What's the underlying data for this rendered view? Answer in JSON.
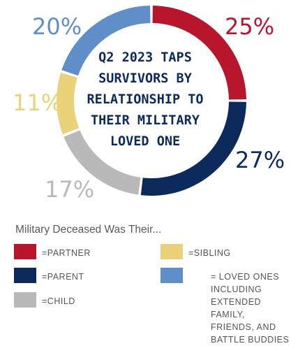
{
  "chart_data": {
    "type": "pie",
    "title": "Q2 2023 TAPS SURVIVORS BY RELATIONSHIP TO THEIR MILITARY LOVED ONE",
    "categories": [
      "Partner",
      "Parent",
      "Child",
      "Sibling",
      "Loved Ones"
    ],
    "values": [
      25,
      27,
      17,
      11,
      20
    ],
    "value_labels": [
      "25%",
      "27%",
      "17%",
      "11%",
      "20%"
    ],
    "colors": [
      "#b8162d",
      "#0c2a5b",
      "#b9b9b9",
      "#ead27a",
      "#5f8ec9"
    ],
    "donut": true,
    "legend_title": "Military Deceased Was Their...",
    "legend": [
      {
        "label": "=PARTNER",
        "color": "#b8162d"
      },
      {
        "label": "=PARENT",
        "color": "#0c2a5b"
      },
      {
        "label": "=CHILD",
        "color": "#b9b9b9"
      },
      {
        "label": "=SIBLING",
        "color": "#ead27a"
      },
      {
        "label": "= LOVED ONES\n    INCLUDING\nEXTENDED\n    FAMILY, FRIENDS, AND\n    BATTLE BUDDIES",
        "color": "#5f8ec9"
      }
    ],
    "legend_placement": "bottom"
  }
}
